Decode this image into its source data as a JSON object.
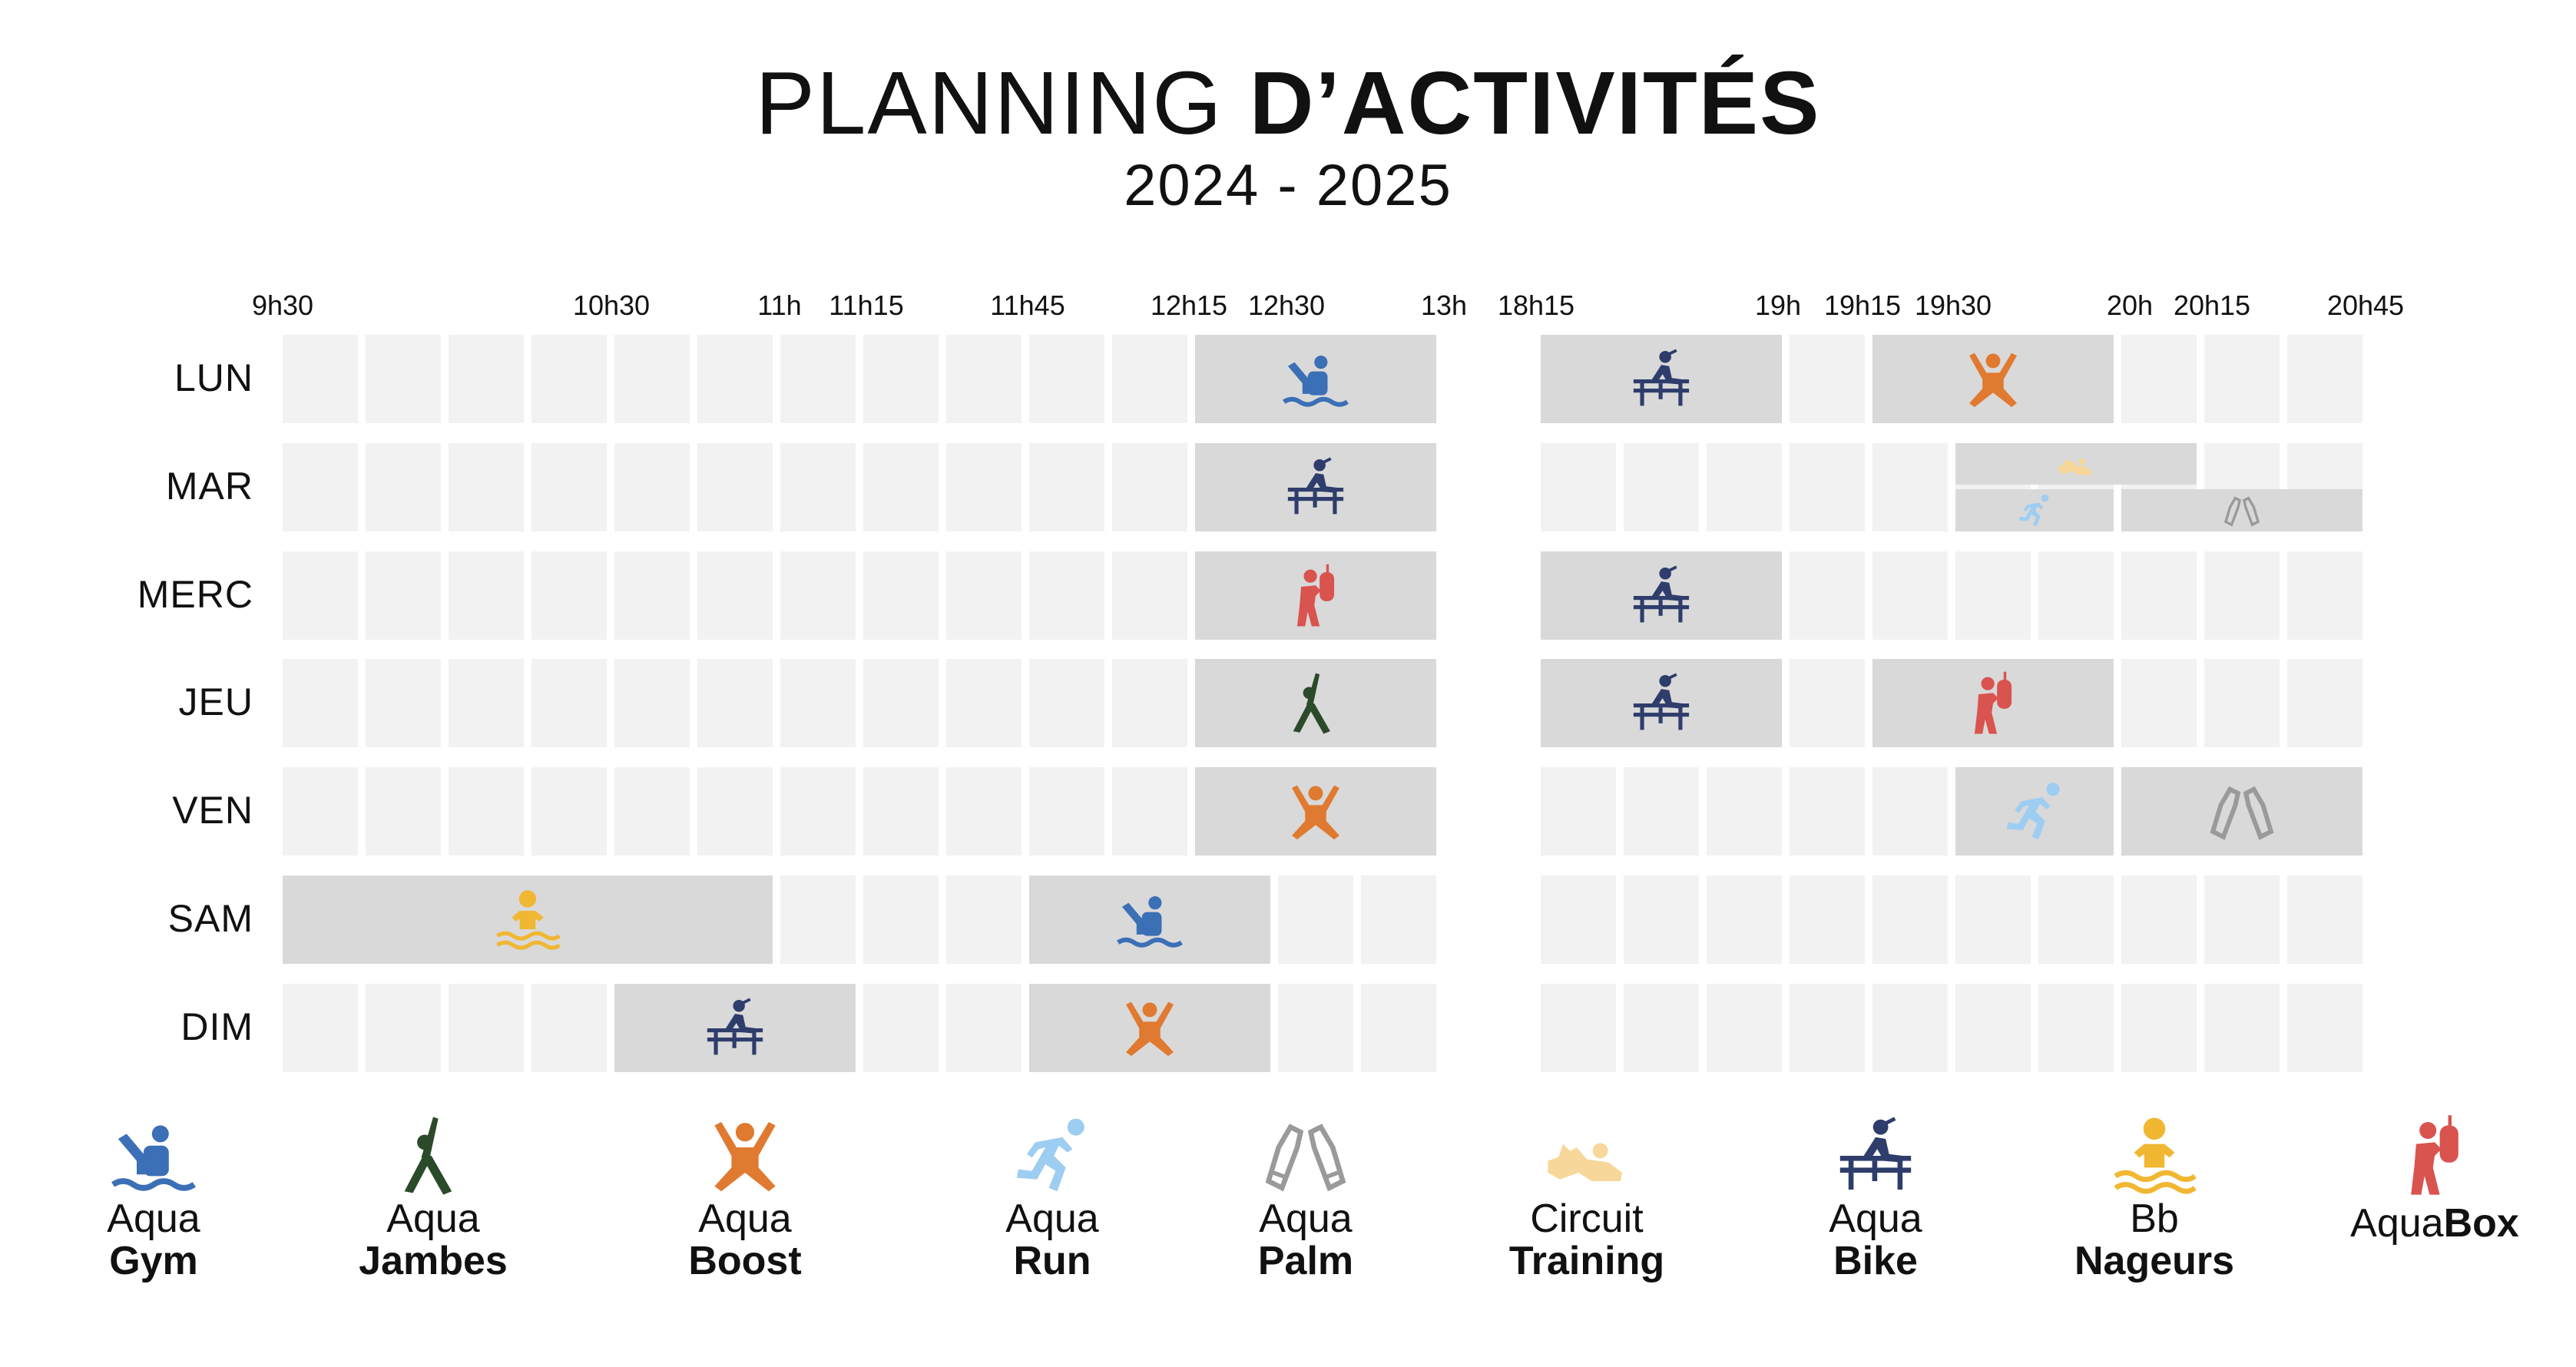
{
  "title": {
    "light": "PLANNING ",
    "bold": "D’ACTIVITÉS"
  },
  "subtitle": "2024 - 2025",
  "time_labels": [
    "9h30",
    "10h30",
    "11h",
    "11h15",
    "11h45",
    "12h15",
    "12h30",
    "13h",
    "18h15",
    "19h",
    "19h15",
    "19h30",
    "20h",
    "20h15",
    "20h45"
  ],
  "days": [
    "LUN",
    "MAR",
    "MERC",
    "JEU",
    "VEN",
    "SAM",
    "DIM"
  ],
  "colors": {
    "gym": "#3b6fb6",
    "jambes": "#2b4a2a",
    "boost": "#e07a30",
    "run": "#9ecdf2",
    "palm": "#9a9a9a",
    "circuit": "#f7d89a",
    "bike": "#2e3d6b",
    "nageurs": "#f0b732",
    "box": "#d9534f"
  },
  "legend": [
    {
      "key": "gym",
      "line1": "Aqua",
      "line2": "Gym",
      "icon": "swimmer-wave-icon"
    },
    {
      "key": "jambes",
      "line1": "Aqua",
      "line2": "Jambes",
      "icon": "leg-stretch-icon"
    },
    {
      "key": "boost",
      "line1": "Aqua",
      "line2": "Boost",
      "icon": "jumping-person-icon"
    },
    {
      "key": "run",
      "line1": "Aqua",
      "line2": "Run",
      "icon": "runner-icon"
    },
    {
      "key": "palm",
      "line1": "Aqua",
      "line2": "Palm",
      "icon": "swim-fins-icon"
    },
    {
      "key": "circuit",
      "line1": "Circuit",
      "line2": "Training",
      "icon": "pushup-icon"
    },
    {
      "key": "bike",
      "line1": "Aqua",
      "line2": "Bike",
      "icon": "cyclist-icon"
    },
    {
      "key": "nageurs",
      "line1": "Bb",
      "line2": "Nageurs",
      "icon": "baby-swimmer-icon"
    },
    {
      "key": "box",
      "line1": "Aqua",
      "line2": "Box",
      "icon": "boxer-icon"
    }
  ]
}
